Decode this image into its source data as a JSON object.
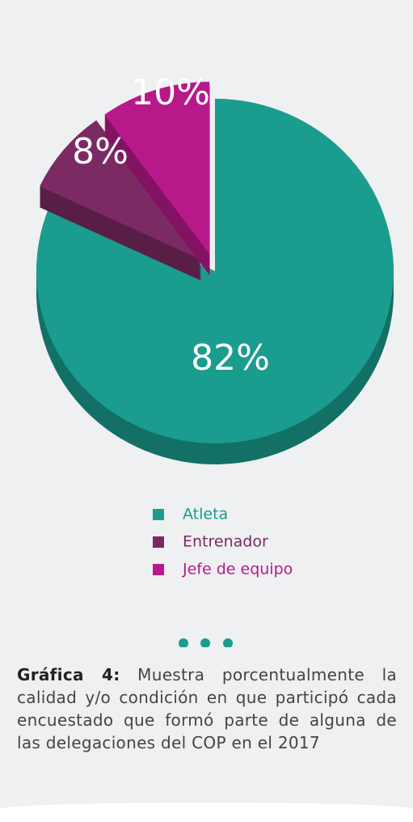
{
  "chart_data": {
    "type": "pie",
    "categories": [
      "Atleta",
      "Entrenador",
      "Jefe de equipo"
    ],
    "values": [
      82,
      8,
      10
    ],
    "value_labels": [
      "82%",
      "8%",
      "10%"
    ],
    "colors": [
      "#1a9c8e",
      "#7b2a63",
      "#b8198a"
    ]
  },
  "caption": {
    "label": "Gráfica 4:",
    "text": "Muestra porcentualmente la calidad y/o condición en que participó cada encuestado que formó parte de alguna de las delegaciones del COP en el 2017"
  }
}
